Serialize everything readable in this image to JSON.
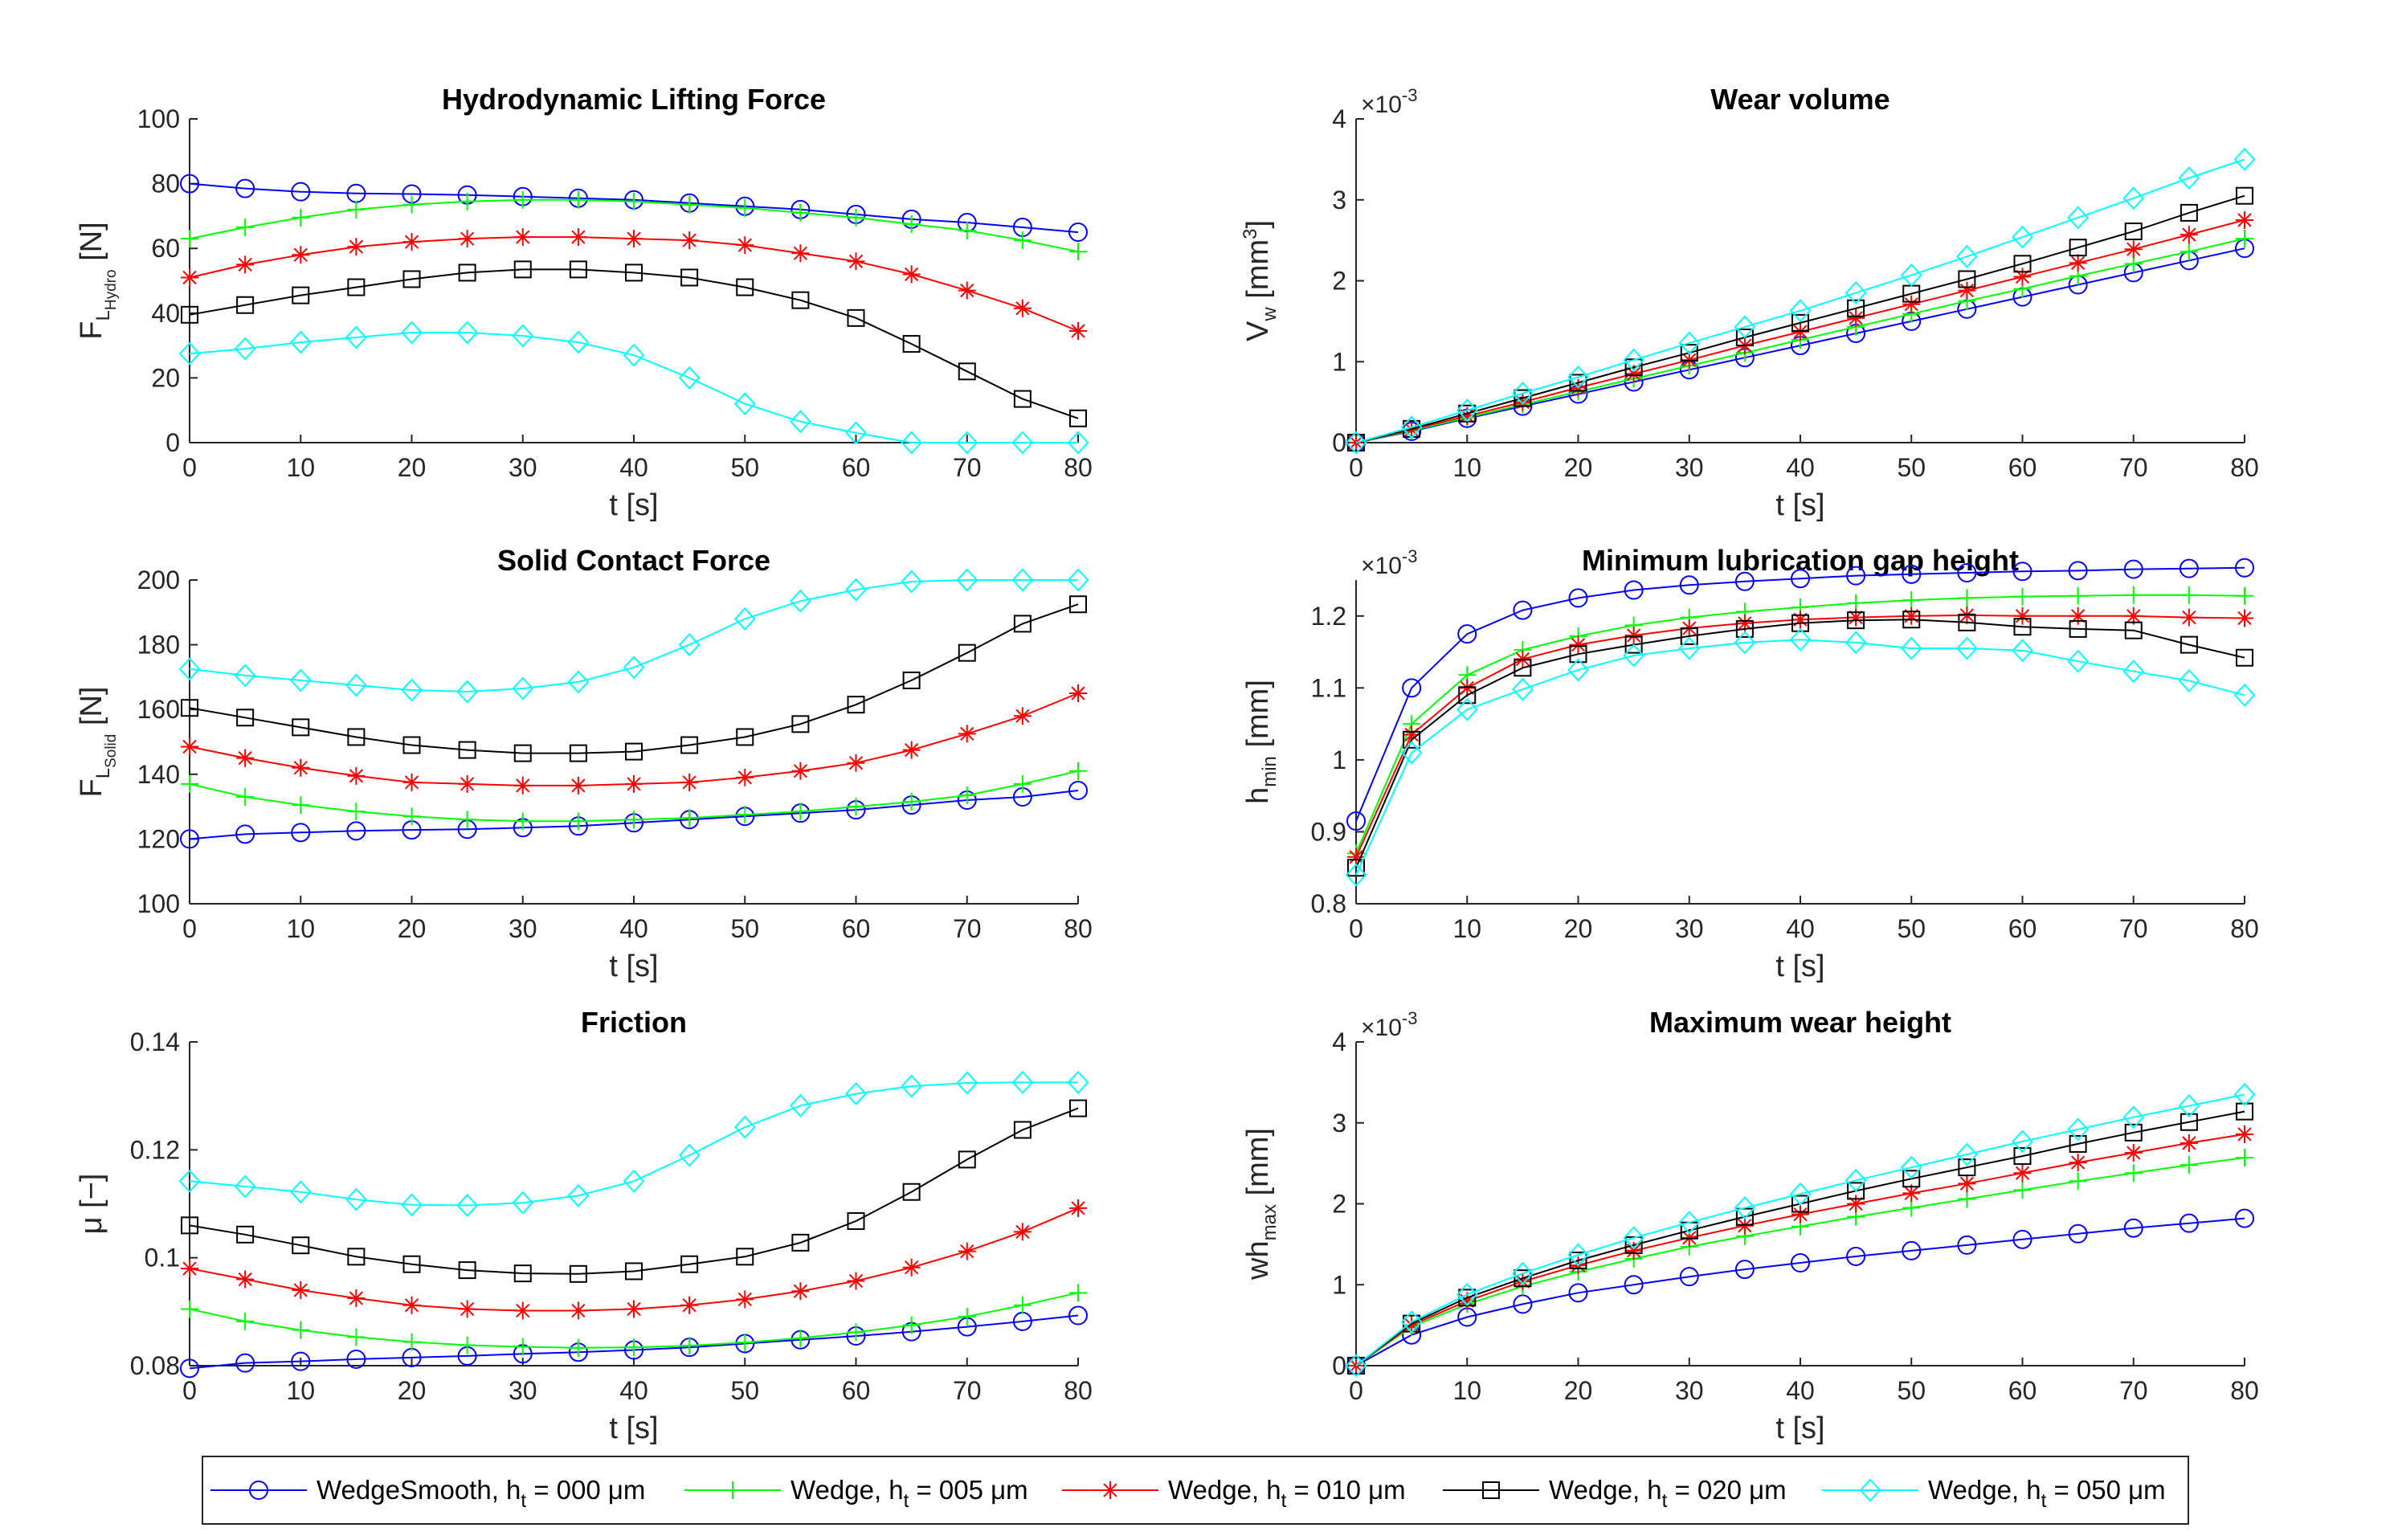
{
  "series_styles": [
    {
      "name": "WedgeSmooth",
      "color": "#0000ff",
      "marker": "circle"
    },
    {
      "name": "Wedge 005",
      "color": "#00ff00",
      "marker": "plus"
    },
    {
      "name": "Wedge 010",
      "color": "#ff0000",
      "marker": "asterisk"
    },
    {
      "name": "Wedge 020",
      "color": "#000000",
      "marker": "square"
    },
    {
      "name": "Wedge 050",
      "color": "#00ffff",
      "marker": "diamond"
    }
  ],
  "legend": {
    "entries": [
      {
        "pre": "WedgeSmooth, h",
        "sub": "t",
        "post": " = 000 μm"
      },
      {
        "pre": "Wedge, h",
        "sub": "t",
        "post": " = 005 μm"
      },
      {
        "pre": "Wedge, h",
        "sub": "t",
        "post": " = 010 μm"
      },
      {
        "pre": "Wedge, h",
        "sub": "t",
        "post": " = 020 μm"
      },
      {
        "pre": "Wedge, h",
        "sub": "t",
        "post": " = 050 μm"
      }
    ]
  },
  "chart_data": [
    {
      "type": "line",
      "title": "Hydrodynamic Lifting Force",
      "xlabel": "t [s]",
      "ylabel": {
        "main": "F",
        "sub1": "L",
        "sub2": "Hydro",
        "unit": " [N]"
      },
      "xlim": [
        0,
        80
      ],
      "ylim": [
        0,
        100
      ],
      "xticks": [
        "0",
        "10",
        "20",
        "30",
        "40",
        "50",
        "60",
        "70",
        "80"
      ],
      "yticks": [
        "0",
        "20",
        "40",
        "60",
        "80",
        "100"
      ],
      "x": [
        0,
        5,
        10,
        15,
        20,
        25,
        30,
        35,
        40,
        45,
        50,
        55,
        60,
        65,
        70,
        75,
        80
      ],
      "series": [
        {
          "name": "WedgeSmooth, h_t = 000 μm",
          "values": [
            80,
            78.5,
            77.5,
            77,
            76.8,
            76.5,
            76,
            75.5,
            75,
            74,
            73,
            72,
            70.5,
            69,
            68,
            66.5,
            65
          ]
        },
        {
          "name": "Wedge, h_t = 005 μm",
          "values": [
            63,
            66.5,
            69.5,
            72,
            73.5,
            74.5,
            75,
            75,
            74.5,
            73.5,
            72.5,
            71,
            69.5,
            67.5,
            65.5,
            62.5,
            59
          ]
        },
        {
          "name": "Wedge, h_t = 010 μm",
          "values": [
            51,
            55,
            58,
            60.5,
            62,
            63,
            63.5,
            63.5,
            63,
            62.5,
            61,
            58.5,
            56,
            52,
            47,
            41.5,
            34.5
          ]
        },
        {
          "name": "Wedge, h_t = 020 μm",
          "values": [
            39.5,
            42.5,
            45.5,
            48,
            50.5,
            52.5,
            53.5,
            53.5,
            52.5,
            51,
            48,
            44,
            38.5,
            30.5,
            22,
            13.5,
            7.5
          ]
        },
        {
          "name": "Wedge, h_t = 050 μm",
          "values": [
            27.5,
            29,
            31,
            32.5,
            34,
            34,
            33,
            31,
            27,
            20,
            12,
            6.5,
            3,
            0,
            0,
            0,
            0
          ]
        }
      ]
    },
    {
      "type": "line",
      "title": "Wear volume",
      "xlabel": "t [s]",
      "ylabel": {
        "main": "V",
        "sub1": "w",
        "unit": " [mm",
        "sup": "3",
        "close": "]"
      },
      "exponent": "×10",
      "exponent_power": "-3",
      "xlim": [
        0,
        80
      ],
      "ylim": [
        0,
        4
      ],
      "xticks": [
        "0",
        "10",
        "20",
        "30",
        "40",
        "50",
        "60",
        "70",
        "80"
      ],
      "yticks": [
        "0",
        "1",
        "2",
        "3",
        "4"
      ],
      "x": [
        0,
        5,
        10,
        15,
        20,
        25,
        30,
        35,
        40,
        45,
        50,
        55,
        60,
        65,
        70,
        75,
        80
      ],
      "series": [
        {
          "name": "WedgeSmooth, h_t = 000 μm",
          "values": [
            0,
            0.14,
            0.3,
            0.45,
            0.6,
            0.75,
            0.9,
            1.05,
            1.2,
            1.35,
            1.5,
            1.65,
            1.8,
            1.95,
            2.1,
            2.25,
            2.4
          ]
        },
        {
          "name": "Wedge, h_t = 005 μm",
          "values": [
            0,
            0.15,
            0.31,
            0.47,
            0.63,
            0.79,
            0.95,
            1.11,
            1.27,
            1.43,
            1.59,
            1.75,
            1.9,
            2.06,
            2.21,
            2.36,
            2.52
          ]
        },
        {
          "name": "Wedge, h_t = 010 μm",
          "values": [
            0,
            0.16,
            0.33,
            0.5,
            0.68,
            0.85,
            1.02,
            1.2,
            1.37,
            1.54,
            1.71,
            1.88,
            2.05,
            2.22,
            2.39,
            2.57,
            2.75
          ]
        },
        {
          "name": "Wedge, h_t = 020 μm",
          "values": [
            0,
            0.17,
            0.36,
            0.55,
            0.74,
            0.93,
            1.11,
            1.3,
            1.48,
            1.66,
            1.84,
            2.02,
            2.21,
            2.41,
            2.61,
            2.84,
            3.05
          ]
        },
        {
          "name": "Wedge, h_t = 050 μm",
          "values": [
            0,
            0.19,
            0.4,
            0.61,
            0.81,
            1.02,
            1.23,
            1.43,
            1.63,
            1.85,
            2.07,
            2.3,
            2.54,
            2.78,
            3.02,
            3.27,
            3.5
          ]
        }
      ]
    },
    {
      "type": "line",
      "title": "Solid Contact Force",
      "xlabel": "t [s]",
      "ylabel": {
        "main": "F",
        "sub1": "L",
        "sub2": "Solid",
        "unit": " [N]"
      },
      "xlim": [
        0,
        80
      ],
      "ylim": [
        100,
        200
      ],
      "xticks": [
        "0",
        "10",
        "20",
        "30",
        "40",
        "50",
        "60",
        "70",
        "80"
      ],
      "yticks": [
        "100",
        "120",
        "140",
        "160",
        "180",
        "200"
      ],
      "x": [
        0,
        5,
        10,
        15,
        20,
        25,
        30,
        35,
        40,
        45,
        50,
        55,
        60,
        65,
        70,
        75,
        80
      ],
      "series": [
        {
          "name": "WedgeSmooth, h_t = 000 μm",
          "values": [
            120,
            121.5,
            122,
            122.5,
            122.8,
            123,
            123.5,
            124,
            125,
            126,
            127,
            128,
            129,
            130.5,
            132,
            133,
            135
          ]
        },
        {
          "name": "Wedge, h_t = 005 μm",
          "values": [
            137,
            133,
            130.5,
            128.5,
            127,
            126,
            125.5,
            125.5,
            126,
            126.5,
            127.5,
            128.5,
            130,
            131.5,
            133.5,
            137,
            141
          ]
        },
        {
          "name": "Wedge, h_t = 010 μm",
          "values": [
            148.5,
            145,
            142,
            139.5,
            137.5,
            137,
            136.5,
            136.5,
            137,
            137.5,
            139,
            141,
            143.5,
            147.5,
            152.5,
            158,
            165
          ]
        },
        {
          "name": "Wedge, h_t = 020 μm",
          "values": [
            160.5,
            157.5,
            154.5,
            151.5,
            149,
            147.5,
            146.5,
            146.5,
            147,
            149,
            151.5,
            155.5,
            161.5,
            169,
            177.5,
            186.5,
            192.5
          ]
        },
        {
          "name": "Wedge, h_t = 050 μm",
          "values": [
            172.5,
            170.5,
            169,
            167.5,
            166,
            165.5,
            166.5,
            168.5,
            173,
            180,
            188,
            193.5,
            197,
            199.5,
            200,
            200,
            200
          ]
        }
      ]
    },
    {
      "type": "line",
      "title": "Minimum lubrication gap height",
      "xlabel": "t [s]",
      "ylabel": {
        "main": "h",
        "sub1": "min",
        "unit": " [mm]"
      },
      "exponent": "×10",
      "exponent_power": "-3",
      "xlim": [
        0,
        80
      ],
      "ylim": [
        0.8,
        1.25
      ],
      "xticks": [
        "0",
        "10",
        "20",
        "30",
        "40",
        "50",
        "60",
        "70",
        "80"
      ],
      "yticks": [
        "0.8",
        "0.9",
        "1",
        "1.1",
        "1.2"
      ],
      "x": [
        0,
        5,
        10,
        15,
        20,
        25,
        30,
        35,
        40,
        45,
        50,
        55,
        60,
        65,
        70,
        75,
        80
      ],
      "series": [
        {
          "name": "WedgeSmooth, h_t = 000 μm",
          "values": [
            0.915,
            1.1,
            1.175,
            1.208,
            1.225,
            1.236,
            1.243,
            1.248,
            1.252,
            1.256,
            1.258,
            1.26,
            1.262,
            1.263,
            1.265,
            1.266,
            1.267
          ]
        },
        {
          "name": "Wedge, h_t = 005 μm",
          "values": [
            0.87,
            1.05,
            1.118,
            1.153,
            1.172,
            1.187,
            1.198,
            1.206,
            1.212,
            1.218,
            1.222,
            1.225,
            1.227,
            1.228,
            1.229,
            1.229,
            1.228
          ]
        },
        {
          "name": "Wedge, h_t = 010 μm",
          "values": [
            0.865,
            1.035,
            1.1,
            1.14,
            1.16,
            1.173,
            1.183,
            1.19,
            1.195,
            1.198,
            1.2,
            1.201,
            1.2,
            1.2,
            1.2,
            1.198,
            1.197
          ]
        },
        {
          "name": "Wedge, h_t = 020 μm",
          "values": [
            0.85,
            1.028,
            1.09,
            1.128,
            1.147,
            1.16,
            1.172,
            1.182,
            1.19,
            1.194,
            1.195,
            1.191,
            1.185,
            1.182,
            1.18,
            1.16,
            1.142
          ]
        },
        {
          "name": "Wedge, h_t = 050 μm",
          "values": [
            0.84,
            1.01,
            1.07,
            1.098,
            1.125,
            1.145,
            1.155,
            1.163,
            1.167,
            1.163,
            1.155,
            1.155,
            1.152,
            1.137,
            1.123,
            1.11,
            1.09
          ]
        }
      ]
    },
    {
      "type": "line",
      "title": "Friction",
      "xlabel": "t [s]",
      "ylabel": {
        "main": "μ [−]"
      },
      "xlim": [
        0,
        80
      ],
      "ylim": [
        0.08,
        0.14
      ],
      "xticks": [
        "0",
        "10",
        "20",
        "30",
        "40",
        "50",
        "60",
        "70",
        "80"
      ],
      "yticks": [
        "0.08",
        "0.1",
        "0.12",
        "0.14"
      ],
      "x": [
        0,
        5,
        10,
        15,
        20,
        25,
        30,
        35,
        40,
        45,
        50,
        55,
        60,
        65,
        70,
        75,
        80
      ],
      "series": [
        {
          "name": "WedgeSmooth, h_t = 000 μm",
          "values": [
            0.0795,
            0.0805,
            0.0808,
            0.0812,
            0.0815,
            0.0818,
            0.0822,
            0.0825,
            0.0829,
            0.0834,
            0.0841,
            0.0848,
            0.0855,
            0.0863,
            0.0872,
            0.0882,
            0.0893
          ]
        },
        {
          "name": "Wedge, h_t = 005 μm",
          "values": [
            0.0905,
            0.0882,
            0.0866,
            0.0853,
            0.0844,
            0.0838,
            0.0835,
            0.0833,
            0.0834,
            0.0837,
            0.0843,
            0.0851,
            0.0862,
            0.0875,
            0.0891,
            0.0912,
            0.0935
          ]
        },
        {
          "name": "Wedge, h_t = 010 μm",
          "values": [
            0.098,
            0.096,
            0.094,
            0.0925,
            0.0912,
            0.0905,
            0.0902,
            0.0902,
            0.0905,
            0.0912,
            0.0923,
            0.0938,
            0.0957,
            0.0982,
            0.1012,
            0.1048,
            0.1092
          ]
        },
        {
          "name": "Wedge, h_t = 020 μm",
          "values": [
            0.106,
            0.1043,
            0.1023,
            0.1002,
            0.0988,
            0.0977,
            0.0971,
            0.097,
            0.0975,
            0.0988,
            0.1002,
            0.1028,
            0.1068,
            0.1122,
            0.1182,
            0.1237,
            0.1277
          ]
        },
        {
          "name": "Wedge, h_t = 050 μm",
          "values": [
            0.1142,
            0.1132,
            0.1122,
            0.1108,
            0.1098,
            0.1097,
            0.1102,
            0.1115,
            0.1142,
            0.119,
            0.1242,
            0.1282,
            0.1304,
            0.1318,
            0.1324,
            0.1325,
            0.1325
          ]
        }
      ]
    },
    {
      "type": "line",
      "title": "Maximum wear height",
      "xlabel": "t [s]",
      "ylabel": {
        "main": "wh",
        "sub1": "max",
        "unit": " [mm]"
      },
      "exponent": "×10",
      "exponent_power": "-3",
      "xlim": [
        0,
        80
      ],
      "ylim": [
        0,
        4
      ],
      "xticks": [
        "0",
        "10",
        "20",
        "30",
        "40",
        "50",
        "60",
        "70",
        "80"
      ],
      "yticks": [
        "0",
        "1",
        "2",
        "3",
        "4"
      ],
      "x": [
        0,
        5,
        10,
        15,
        20,
        25,
        30,
        35,
        40,
        45,
        50,
        55,
        60,
        65,
        70,
        75,
        80
      ],
      "series": [
        {
          "name": "WedgeSmooth, h_t = 000 μm",
          "values": [
            0,
            0.38,
            0.6,
            0.76,
            0.9,
            1.0,
            1.1,
            1.19,
            1.27,
            1.35,
            1.42,
            1.49,
            1.56,
            1.63,
            1.7,
            1.76,
            1.82
          ]
        },
        {
          "name": "Wedge, h_t = 005 μm",
          "values": [
            0,
            0.48,
            0.76,
            0.98,
            1.16,
            1.32,
            1.47,
            1.6,
            1.72,
            1.84,
            1.95,
            2.06,
            2.17,
            2.28,
            2.38,
            2.48,
            2.57
          ]
        },
        {
          "name": "Wedge, h_t = 010 μm",
          "values": [
            0,
            0.5,
            0.8,
            1.04,
            1.24,
            1.42,
            1.58,
            1.73,
            1.87,
            2.0,
            2.13,
            2.25,
            2.38,
            2.51,
            2.63,
            2.75,
            2.86
          ]
        },
        {
          "name": "Wedge, h_t = 020 μm",
          "values": [
            0,
            0.52,
            0.84,
            1.08,
            1.3,
            1.49,
            1.67,
            1.84,
            2.0,
            2.16,
            2.31,
            2.45,
            2.59,
            2.74,
            2.88,
            3.01,
            3.14
          ]
        },
        {
          "name": "Wedge, h_t = 050 μm",
          "values": [
            0,
            0.54,
            0.88,
            1.14,
            1.37,
            1.58,
            1.77,
            1.95,
            2.12,
            2.29,
            2.45,
            2.61,
            2.77,
            2.92,
            3.07,
            3.21,
            3.35
          ]
        }
      ]
    }
  ]
}
